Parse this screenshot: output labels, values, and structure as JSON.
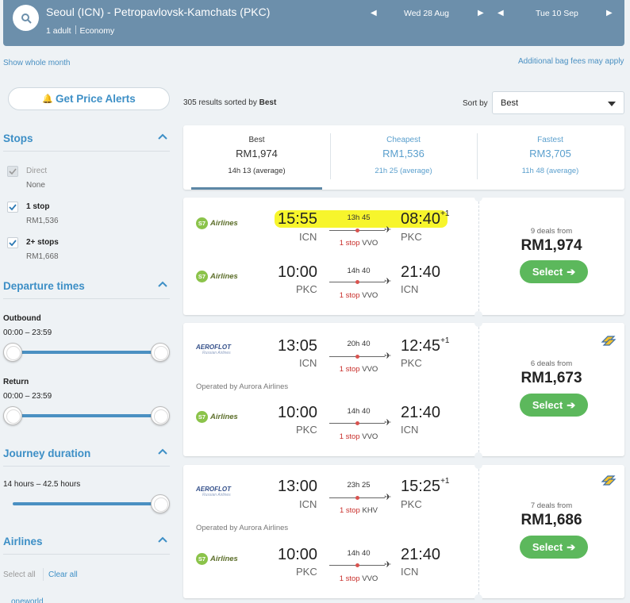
{
  "header": {
    "route": "Seoul (ICN) - Petropavlovsk-Kamchats (PKC)",
    "passengers": "1 adult",
    "cabin": "Economy",
    "depart_date": "Wed 28 Aug",
    "return_date": "Tue 10 Sep"
  },
  "links": {
    "show_month": "Show whole month",
    "bag_fees": "Additional bag fees may apply"
  },
  "sidebar": {
    "price_alert": "Get Price Alerts",
    "stops": {
      "title": "Stops",
      "options": [
        {
          "label": "Direct",
          "sub": "None",
          "checked": true,
          "disabled": true
        },
        {
          "label": "1 stop",
          "sub": "RM1,536",
          "checked": true,
          "disabled": false
        },
        {
          "label": "2+ stops",
          "sub": "RM1,668",
          "checked": true,
          "disabled": false
        }
      ]
    },
    "departure": {
      "title": "Departure times",
      "outbound_label": "Outbound",
      "outbound_range": "00:00 – 23:59",
      "return_label": "Return",
      "return_range": "00:00 – 23:59"
    },
    "duration": {
      "title": "Journey duration",
      "range": "14 hours – 42.5 hours"
    },
    "airlines": {
      "title": "Airlines",
      "select_all": "Select all",
      "clear_all": "Clear all",
      "first_item": "oneworld"
    }
  },
  "results": {
    "count_text": "305 results sorted by",
    "sorted_by": "Best",
    "sort_label": "Sort by",
    "sort_value": "Best"
  },
  "tabs": [
    {
      "title": "Best",
      "price": "RM1,974",
      "sub": "14h 13 (average)"
    },
    {
      "title": "Cheapest",
      "price": "RM1,536",
      "sub": "21h 25 (average)"
    },
    {
      "title": "Fastest",
      "price": "RM3,705",
      "sub": "11h 48 (average)"
    }
  ],
  "cards": [
    {
      "deals": "9 deals from",
      "price": "RM1,974",
      "select": "Select",
      "outbound": {
        "airline": "Airlines",
        "dep": "15:55",
        "dep_code": "ICN",
        "dur": "13h 45",
        "arr": "08:40",
        "arr_sup": "+1",
        "arr_code": "PKC",
        "stops": "1 stop",
        "via": "VVO"
      },
      "inbound": {
        "airline": "Airlines",
        "dep": "10:00",
        "dep_code": "PKC",
        "dur": "14h 40",
        "arr": "21:40",
        "arr_code": "ICN",
        "stops": "1 stop",
        "via": "VVO"
      }
    },
    {
      "deals": "6 deals from",
      "price": "RM1,673",
      "select": "Select",
      "outbound": {
        "airline": "AEROFLOT",
        "airline_sub": "Russian Airlines",
        "dep": "13:05",
        "dep_code": "ICN",
        "dur": "20h 40",
        "arr": "12:45",
        "arr_sup": "+1",
        "arr_code": "PKC",
        "stops": "1 stop",
        "via": "VVO",
        "operated": "Operated by Aurora Airlines"
      },
      "inbound": {
        "airline": "Airlines",
        "dep": "10:00",
        "dep_code": "PKC",
        "dur": "14h 40",
        "arr": "21:40",
        "arr_code": "ICN",
        "stops": "1 stop",
        "via": "VVO"
      }
    },
    {
      "deals": "7 deals from",
      "price": "RM1,686",
      "select": "Select",
      "outbound": {
        "airline": "AEROFLOT",
        "airline_sub": "Russian Airlines",
        "dep": "13:00",
        "dep_code": "ICN",
        "dur": "23h 25",
        "arr": "15:25",
        "arr_sup": "+1",
        "arr_code": "PKC",
        "stops": "1 stop",
        "via": "KHV",
        "operated": "Operated by Aurora Airlines"
      },
      "inbound": {
        "airline": "Airlines",
        "dep": "10:00",
        "dep_code": "PKC",
        "dur": "14h 40",
        "arr": "21:40",
        "arr_code": "ICN",
        "stops": "1 stop",
        "via": "VVO"
      }
    }
  ],
  "colors": {
    "header_bg": "#6c8fab",
    "accent_blue": "#3d8fc6",
    "select_green": "#5cb85c",
    "highlight_yellow": "#f7f52c",
    "stop_red": "#c9302c"
  }
}
